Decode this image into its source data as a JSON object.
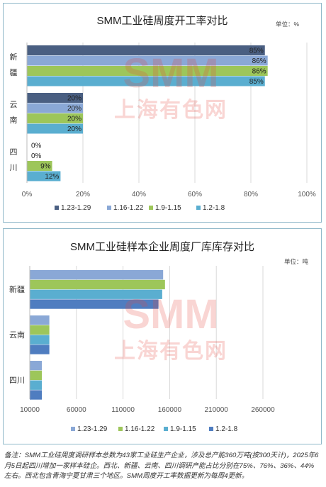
{
  "colors": {
    "s1": "#4a5f82",
    "s2": "#8aa8d6",
    "s3": "#9dc65a",
    "s4": "#5aaed0",
    "s2_b": "#8aa8d6",
    "s3_b": "#9dc65a",
    "s4_b": "#5aaed0",
    "s1_b": "#4f7dc0"
  },
  "watermark": {
    "line1": "SMM",
    "line2": "上海有色网"
  },
  "chart_data": [
    {
      "type": "bar",
      "orientation": "horizontal",
      "title": "SMM工业硅周度开工率对比",
      "unit_label": "单位：%",
      "categories": [
        "新疆",
        "云南",
        "四川"
      ],
      "series": [
        {
          "name": "1.23-1.29",
          "values": [
            85,
            20,
            0
          ]
        },
        {
          "name": "1.16-1.22",
          "values": [
            86,
            20,
            0
          ]
        },
        {
          "name": "1.9-1.15",
          "values": [
            86,
            20,
            9
          ]
        },
        {
          "name": "1.2-1.8",
          "values": [
            85,
            20,
            12
          ]
        }
      ],
      "data_labels": [
        [
          "85%",
          "86%",
          "86%",
          "85%"
        ],
        [
          "20%",
          "20%",
          "20%",
          "20%"
        ],
        [
          "0%",
          "0%",
          "9%",
          "12%"
        ]
      ],
      "xlim": [
        0,
        100
      ],
      "xticks": [
        "0%",
        "20%",
        "40%",
        "60%",
        "80%",
        "100%"
      ],
      "grid": true,
      "legend": "bottom"
    },
    {
      "type": "bar",
      "orientation": "horizontal",
      "title": "SMM工业硅样本企业周度厂库库存对比",
      "unit_label": "单位：吨",
      "categories": [
        "新疆",
        "云南",
        "四川"
      ],
      "series": [
        {
          "name": "1.23-1.29",
          "values": [
            153000,
            31000,
            23000
          ]
        },
        {
          "name": "1.16-1.22",
          "values": [
            155000,
            31000,
            23000
          ]
        },
        {
          "name": "1.9-1.15",
          "values": [
            152000,
            31000,
            23000
          ]
        },
        {
          "name": "1.2-1.8",
          "values": [
            148000,
            31000,
            23000
          ]
        }
      ],
      "xlim": [
        10000,
        260000
      ],
      "xticks": [
        "10000",
        "60000",
        "110000",
        "160000",
        "210000",
        "260000"
      ],
      "grid": true,
      "legend": "bottom"
    }
  ],
  "note": "备注：SMM工业硅周度调研样本总数为43家工业硅生产企业，涉及总产能360万吨(按300天计)，2025年6月5日起四川增加一家样本硅企。西北、新疆、云南、四川调研产能占比分别在75%、76%、36%、44%左右。西北包含青海宁夏甘肃三个地区。SMM周度开工率数据更新为每周4更新。"
}
